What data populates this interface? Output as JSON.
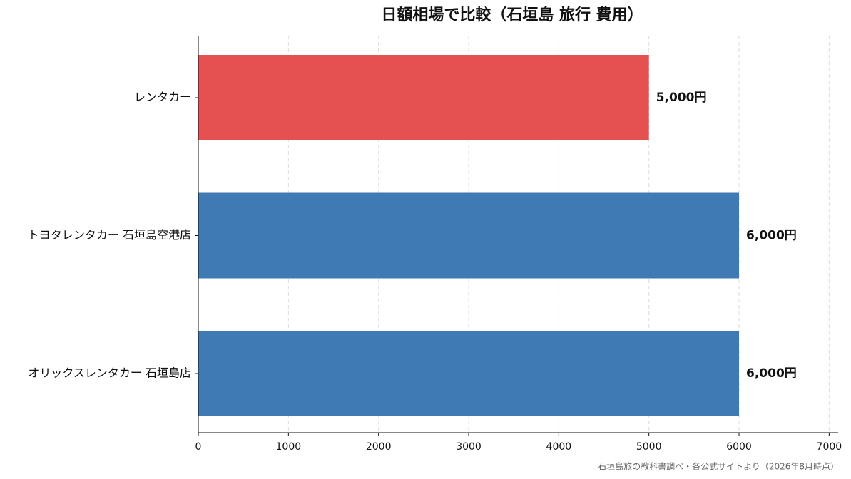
{
  "chart_data": {
    "type": "barh",
    "title": "日額相場で比較（石垣島 旅行 費用）",
    "categories": [
      "レンタカー",
      "トヨタレンタカー 石垣島空港店",
      "オリックスレンタカー 石垣島店"
    ],
    "values": [
      5000,
      6000,
      6000
    ],
    "value_labels": [
      "5,000円",
      "6,000円",
      "6,000円"
    ],
    "colors": [
      "#e55151",
      "#3f7ab5",
      "#3f7ab5"
    ],
    "xlim": [
      0,
      7100
    ],
    "xticks": [
      0,
      1000,
      2000,
      3000,
      4000,
      5000,
      6000,
      7000
    ],
    "grid": true,
    "source": "石垣島旅の教科書調べ・各公式サイトより（2026年8月時点）"
  }
}
